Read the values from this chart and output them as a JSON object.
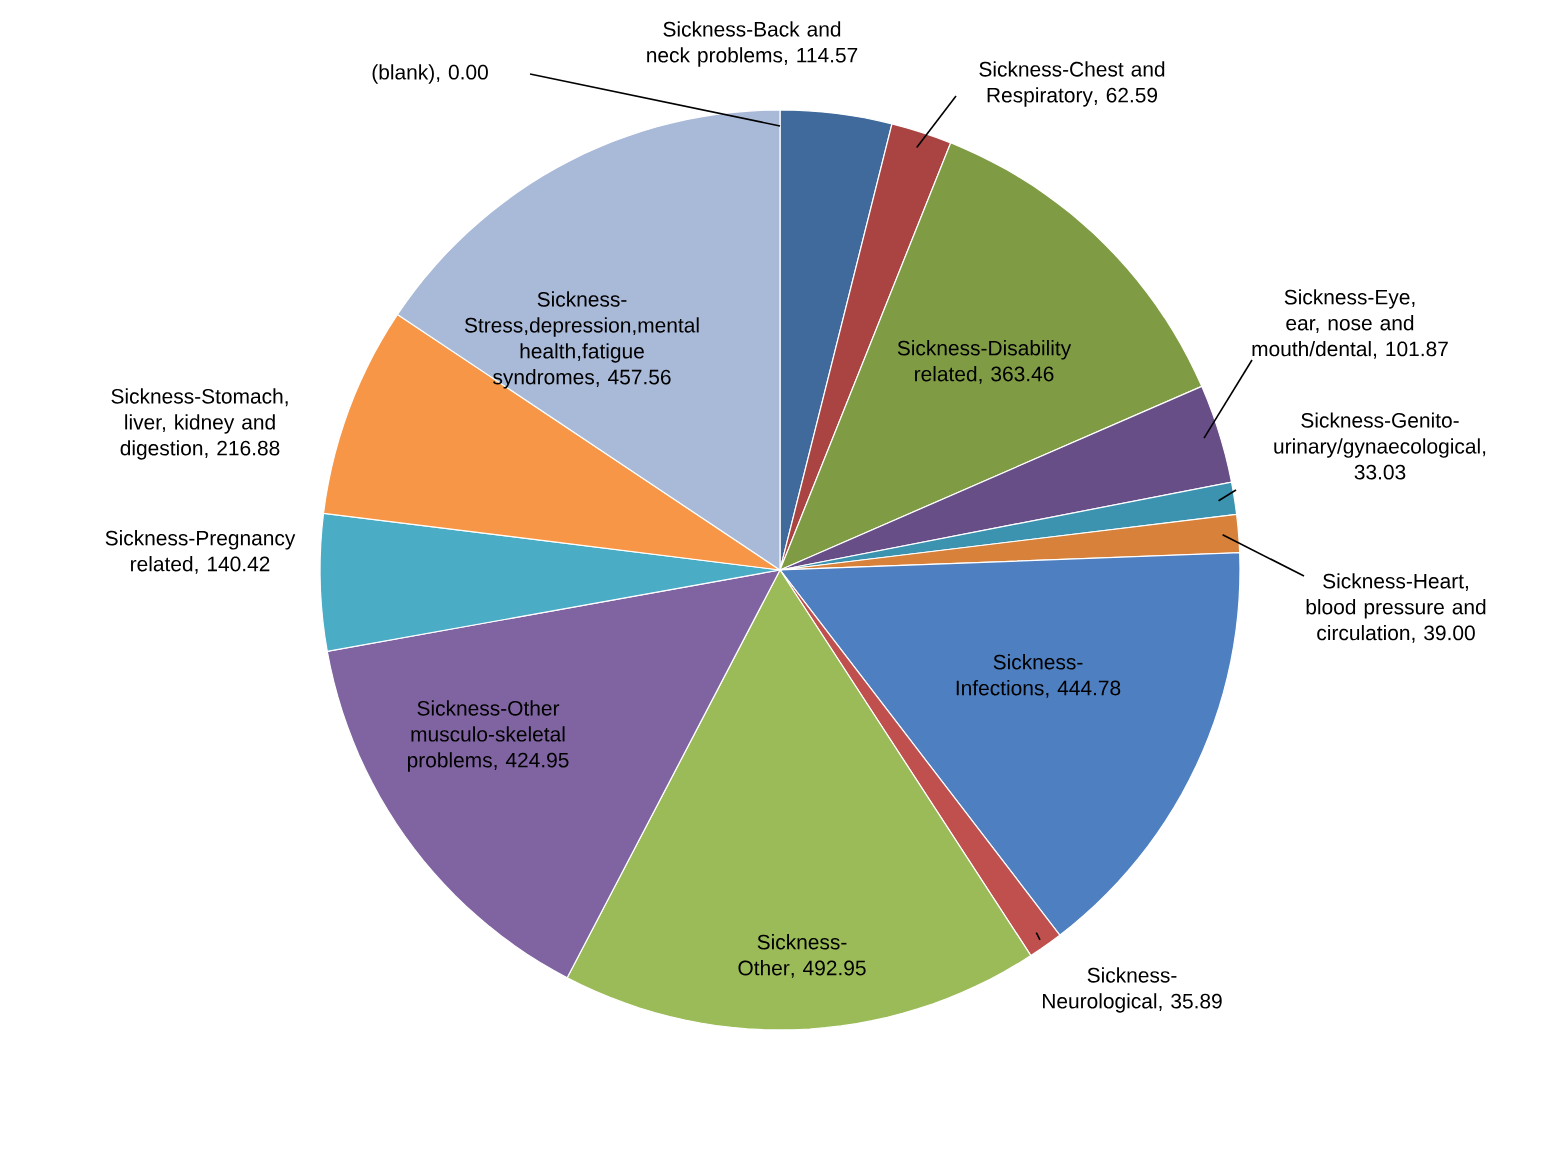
{
  "chart_data": {
    "type": "pie",
    "categories": [
      "(blank)",
      "Sickness-Back and neck problems",
      "Sickness-Chest and Respiratory",
      "Sickness-Disability related",
      "Sickness-Eye, ear, nose and mouth/dental",
      "Sickness-Genito-urinary/gynaecological",
      "Sickness-Heart, blood pressure and circulation",
      "Sickness-Infections",
      "Sickness-Neurological",
      "Sickness-Other",
      "Sickness-Other musculo-skeletal problems",
      "Sickness-Pregnancy related",
      "Sickness-Stomach, liver, kidney and digestion",
      "Sickness-Stress,depression,mental health,fatigue syndromes"
    ],
    "values": [
      0.0,
      114.57,
      62.59,
      363.46,
      101.87,
      33.03,
      39.0,
      444.78,
      35.89,
      492.95,
      424.95,
      140.42,
      216.88,
      457.56
    ],
    "value_labels": [
      ", 0.00",
      ", 114.57",
      ", 62.59",
      ", 363.46",
      ", 101.87",
      ", 33.03",
      ", 39.00",
      ", 444.78",
      ", 35.89",
      ", 492.95",
      ", 424.95",
      ", 140.42",
      ", 216.88",
      ", 457.56"
    ],
    "colors": [
      null,
      "#3f6a9b",
      "#a94442",
      "#7f9c45",
      "#684e87",
      "#3b93b0",
      "#d7813a",
      "#4e7fc0",
      "#c0504d",
      "#9bbb59",
      "#8064a2",
      "#4bacc6",
      "#f79646",
      "#a9b9d8"
    ]
  }
}
